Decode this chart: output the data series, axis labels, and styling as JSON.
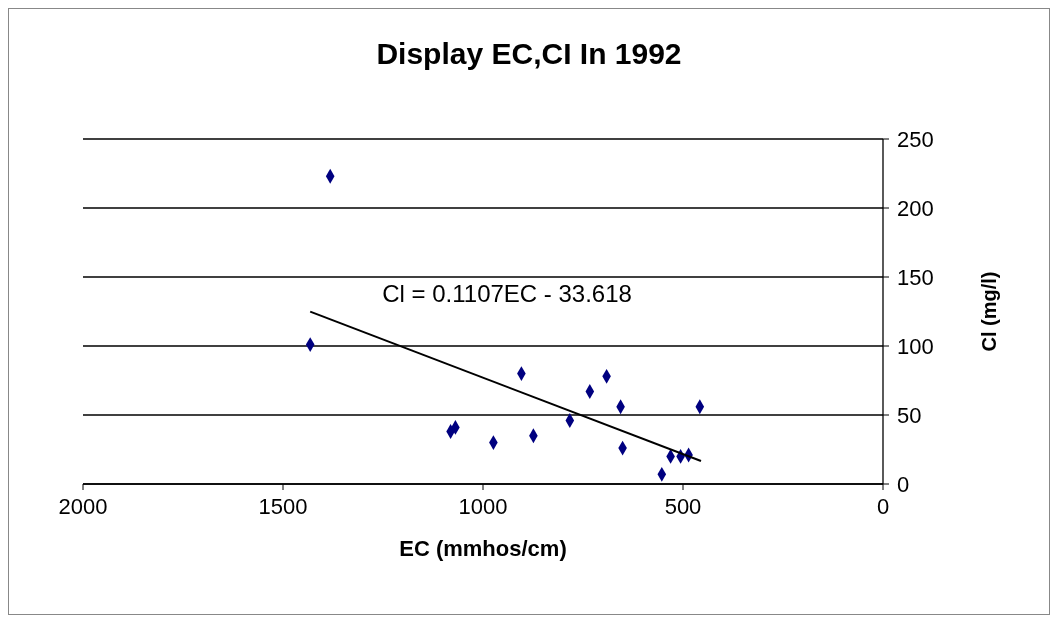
{
  "chart_data": {
    "type": "scatter",
    "title": "Display EC,CI In 1992",
    "xlabel": "EC (mmhos/cm)",
    "ylabel": "Cl (mg/l)",
    "xlim": [
      2000,
      0
    ],
    "xticks": [
      2000,
      1500,
      1000,
      500,
      0
    ],
    "ylim": [
      0,
      250
    ],
    "yticks": [
      0,
      50,
      100,
      150,
      200,
      250
    ],
    "grid": "y",
    "marker": "diamond",
    "series": [
      {
        "color": "#000080",
        "x": [
          1382,
          1432,
          1081,
          1069,
          974,
          904,
          874,
          783,
          733,
          691,
          656,
          651,
          553,
          531,
          506,
          486,
          458
        ],
        "values": [
          223,
          101,
          38,
          41,
          30,
          80,
          35,
          46,
          67,
          78,
          56,
          26,
          7,
          20,
          20,
          21,
          56
        ]
      },
      {
        "type": "line",
        "name": "Cl = 0.1107EC - 33.618",
        "color": "#000000",
        "marker": "none",
        "x": [
          1432,
          455
        ],
        "values": [
          124.9,
          16.7
        ]
      }
    ]
  }
}
